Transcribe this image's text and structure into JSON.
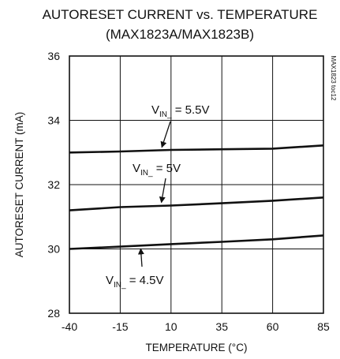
{
  "chart_data": {
    "type": "line",
    "title": "AUTORESET CURRENT vs. TEMPERATURE",
    "subtitle": "(MAX1823A/MAX1823B)",
    "xlabel": "TEMPERATURE (°C)",
    "ylabel": "AUTORESET CURRENT (mA)",
    "x_ticks": [
      "-40",
      "-15",
      "10",
      "35",
      "60",
      "85"
    ],
    "y_ticks": [
      "28",
      "30",
      "32",
      "34",
      "36"
    ],
    "xlim": [
      -40,
      85
    ],
    "ylim": [
      28,
      36
    ],
    "grid": true,
    "legend": "none",
    "side_note": "MAX1823 toc12",
    "series": [
      {
        "x": [
          -40,
          -15,
          10,
          35,
          60,
          85
        ],
        "values": [
          33.0,
          33.03,
          33.08,
          33.1,
          33.12,
          33.22
        ]
      },
      {
        "x": [
          -40,
          -15,
          10,
          35,
          60,
          85
        ],
        "values": [
          31.2,
          31.3,
          31.35,
          31.42,
          31.5,
          31.6
        ]
      },
      {
        "x": [
          -40,
          -15,
          10,
          35,
          60,
          85
        ],
        "values": [
          30.0,
          30.07,
          30.15,
          30.22,
          30.3,
          30.42
        ]
      }
    ],
    "annotations": [
      {
        "main": "V",
        "sub": "IN_",
        "suffix": " = 5.5V",
        "arrow_to": [
          5,
          33.07
        ]
      },
      {
        "main": "V",
        "sub": "IN_",
        "suffix": " = 5V",
        "arrow_to": [
          5,
          31.35
        ]
      },
      {
        "main": "V",
        "sub": "IN_",
        "suffix": " = 4.5V",
        "arrow_to": [
          -5,
          30.1
        ]
      }
    ]
  }
}
